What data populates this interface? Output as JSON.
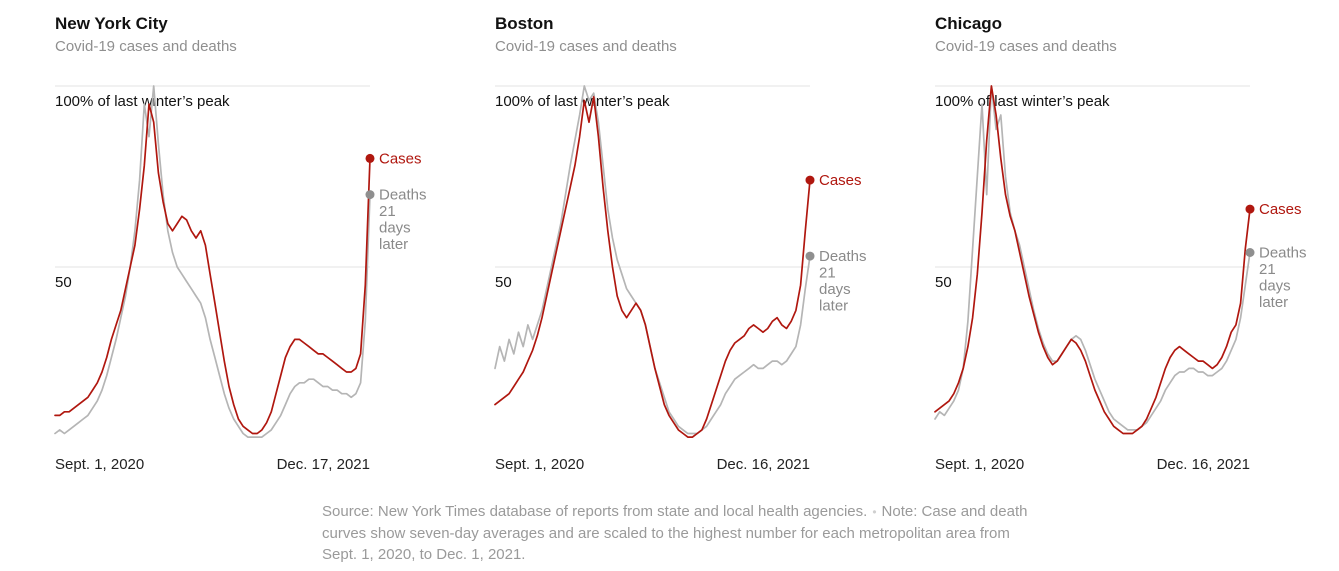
{
  "colors": {
    "cases": {
      "line": "#b0170f",
      "dot": "#b0170f",
      "label": "#b0170f"
    },
    "deaths": {
      "line": "#b5b5b5",
      "dot": "#8f8f8f",
      "label": "#8a8a8a"
    },
    "grid": "#e3e3e3",
    "grid_label": "#121212"
  },
  "footer": {
    "source": "Source: New York Times database of reports from state and local health agencies.",
    "separator": "•",
    "note": "Note: Case and death curves show seven-day averages and are scaled to the highest number for each metropolitan area from Sept. 1, 2020, to Dec. 1, 2021."
  },
  "chart_data": [
    {
      "type": "line",
      "title": "New York City",
      "subtitle": "Covid-19 cases and deaths",
      "ylim": [
        0,
        105
      ],
      "y_gridlines": [
        {
          "value": 100,
          "label": "100% of last winter’s peak"
        },
        {
          "value": 50,
          "label": "50"
        }
      ],
      "x_axis": {
        "start_label": "Sept. 1, 2020",
        "end_label": "Dec. 17, 2021"
      },
      "series": [
        {
          "name": "Cases",
          "color_key": "cases",
          "end_label_lines": [
            "Cases"
          ],
          "values": [
            9,
            9,
            10,
            10,
            11,
            12,
            13,
            14,
            16,
            18,
            21,
            25,
            30,
            34,
            38,
            44,
            50,
            56,
            66,
            78,
            95,
            90,
            76,
            68,
            62,
            60,
            62,
            64,
            63,
            60,
            58,
            60,
            56,
            48,
            40,
            32,
            24,
            17,
            12,
            8,
            6,
            5,
            4,
            4,
            5,
            7,
            10,
            15,
            20,
            25,
            28,
            30,
            30,
            29,
            28,
            27,
            26,
            26,
            25,
            24,
            23,
            22,
            21,
            21,
            22,
            26,
            45,
            80
          ]
        },
        {
          "name": "Deaths 21 days later",
          "color_key": "deaths",
          "end_label_lines": [
            "Deaths",
            "21",
            "days",
            "later"
          ],
          "values": [
            4,
            5,
            4,
            5,
            6,
            7,
            8,
            9,
            11,
            13,
            16,
            20,
            25,
            30,
            36,
            42,
            50,
            60,
            74,
            95,
            86,
            100,
            84,
            70,
            60,
            54,
            50,
            48,
            46,
            44,
            42,
            40,
            36,
            30,
            25,
            20,
            15,
            11,
            8,
            6,
            4,
            3,
            3,
            3,
            3,
            4,
            5,
            7,
            9,
            12,
            15,
            17,
            18,
            18,
            19,
            19,
            18,
            17,
            17,
            16,
            16,
            15,
            15,
            14,
            15,
            18,
            35,
            70
          ]
        }
      ]
    },
    {
      "type": "line",
      "title": "Boston",
      "subtitle": "Covid-19 cases and deaths",
      "ylim": [
        0,
        105
      ],
      "y_gridlines": [
        {
          "value": 100,
          "label": "100% of last winter’s peak"
        },
        {
          "value": 50,
          "label": "50"
        }
      ],
      "x_axis": {
        "start_label": "Sept. 1, 2020",
        "end_label": "Dec. 16, 2021"
      },
      "series": [
        {
          "name": "Cases",
          "color_key": "cases",
          "end_label_lines": [
            "Cases"
          ],
          "values": [
            12,
            13,
            14,
            15,
            17,
            19,
            21,
            24,
            27,
            31,
            36,
            42,
            48,
            54,
            60,
            66,
            72,
            78,
            86,
            96,
            90,
            97,
            86,
            72,
            60,
            50,
            42,
            38,
            36,
            38,
            40,
            38,
            34,
            28,
            22,
            17,
            12,
            9,
            7,
            5,
            4,
            3,
            3,
            4,
            5,
            8,
            12,
            16,
            20,
            24,
            27,
            29,
            30,
            31,
            33,
            34,
            33,
            32,
            33,
            35,
            36,
            34,
            33,
            35,
            38,
            45,
            60,
            74
          ]
        },
        {
          "name": "Deaths 21 days later",
          "color_key": "deaths",
          "end_label_lines": [
            "Deaths",
            "21",
            "days",
            "later"
          ],
          "values": [
            22,
            28,
            24,
            30,
            26,
            32,
            28,
            34,
            30,
            34,
            38,
            44,
            50,
            56,
            62,
            70,
            78,
            85,
            92,
            100,
            96,
            98,
            90,
            78,
            66,
            58,
            52,
            48,
            44,
            42,
            40,
            38,
            34,
            28,
            22,
            18,
            14,
            10,
            8,
            6,
            5,
            4,
            4,
            4,
            5,
            6,
            8,
            10,
            12,
            15,
            17,
            19,
            20,
            21,
            22,
            23,
            22,
            22,
            23,
            24,
            24,
            23,
            24,
            26,
            28,
            34,
            44,
            53
          ]
        }
      ]
    },
    {
      "type": "line",
      "title": "Chicago",
      "subtitle": "Covid-19 cases and deaths",
      "ylim": [
        0,
        105
      ],
      "y_gridlines": [
        {
          "value": 100,
          "label": "100% of last winter’s peak"
        },
        {
          "value": 50,
          "label": "50"
        }
      ],
      "x_axis": {
        "start_label": "Sept. 1, 2020",
        "end_label": "Dec. 16, 2021"
      },
      "series": [
        {
          "name": "Cases",
          "color_key": "cases",
          "end_label_lines": [
            "Cases"
          ],
          "values": [
            10,
            11,
            12,
            13,
            15,
            18,
            22,
            28,
            36,
            48,
            65,
            85,
            100,
            92,
            80,
            70,
            64,
            60,
            54,
            48,
            42,
            37,
            32,
            28,
            25,
            23,
            24,
            26,
            28,
            30,
            29,
            27,
            24,
            20,
            16,
            13,
            10,
            8,
            6,
            5,
            4,
            4,
            4,
            5,
            6,
            8,
            11,
            14,
            18,
            22,
            25,
            27,
            28,
            27,
            26,
            25,
            24,
            24,
            23,
            22,
            23,
            25,
            28,
            32,
            34,
            40,
            55,
            66
          ]
        },
        {
          "name": "Deaths 21 days later",
          "color_key": "deaths",
          "end_label_lines": [
            "Deaths",
            "21",
            "days",
            "later"
          ],
          "values": [
            8,
            10,
            9,
            11,
            13,
            16,
            22,
            35,
            55,
            75,
            95,
            70,
            100,
            88,
            92,
            75,
            65,
            60,
            56,
            50,
            44,
            38,
            33,
            29,
            26,
            24,
            24,
            26,
            28,
            30,
            31,
            30,
            27,
            23,
            19,
            16,
            13,
            10,
            8,
            7,
            6,
            5,
            5,
            5,
            6,
            7,
            9,
            11,
            13,
            16,
            18,
            20,
            21,
            21,
            22,
            22,
            21,
            21,
            20,
            20,
            21,
            22,
            24,
            27,
            30,
            36,
            45,
            54
          ]
        }
      ]
    }
  ]
}
